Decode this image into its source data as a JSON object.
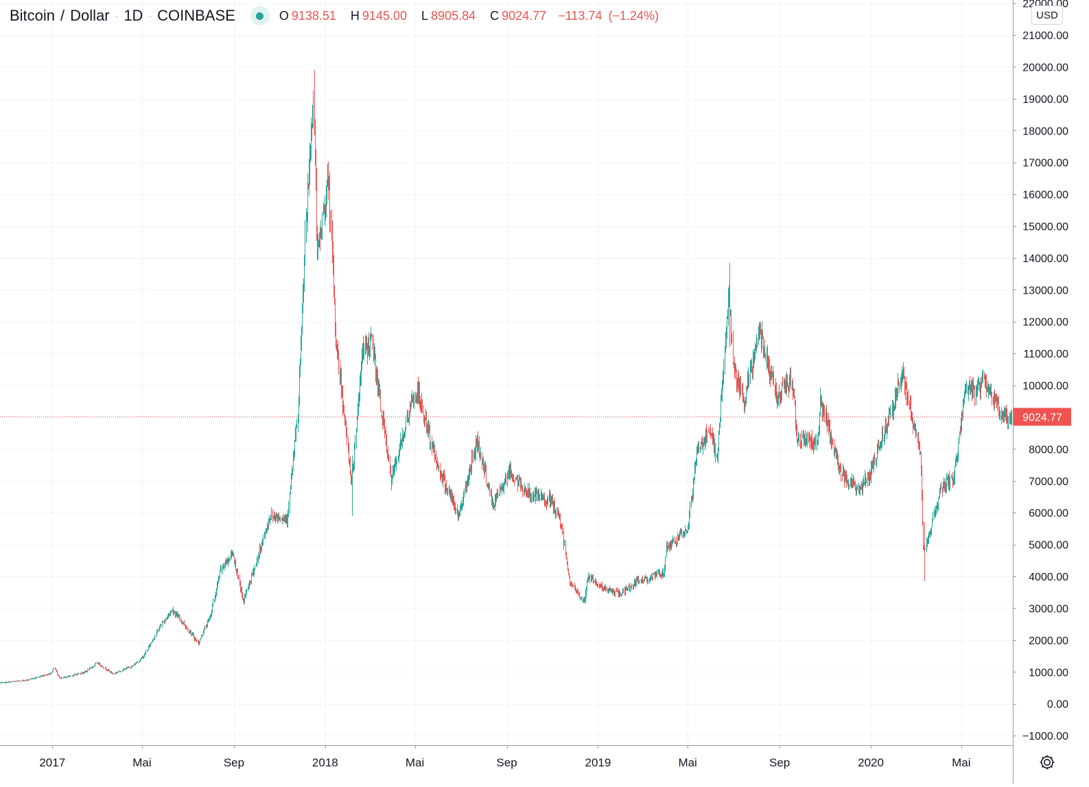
{
  "legend": {
    "symbol": "Bitcoin",
    "quote": "Dollar",
    "separator": "/",
    "interval": "1D",
    "exchange": "COINBASE",
    "status_color": "#26a69a",
    "ohlc": {
      "o_label": "O",
      "o_value": "9138.51",
      "h_label": "H",
      "h_value": "9145.00",
      "l_label": "L",
      "l_value": "8905.84",
      "c_label": "C",
      "c_value": "9024.77",
      "change": "−113.74",
      "change_pct": "(−1.24%)"
    }
  },
  "currency_button": "USD",
  "settings_icon": "gear-icon",
  "chart_data": {
    "type": "candlestick",
    "symbol": "Bitcoin / Dollar",
    "interval": "1D",
    "exchange": "COINBASE",
    "currency": "USD",
    "y_range": [
      -1300,
      22100
    ],
    "y_ticks": [
      -1000,
      0,
      1000,
      2000,
      3000,
      4000,
      5000,
      6000,
      7000,
      8000,
      9000,
      10000,
      11000,
      12000,
      13000,
      14000,
      15000,
      16000,
      17000,
      18000,
      19000,
      20000,
      21000,
      22000
    ],
    "y_tick_labels": [
      "−1000.00",
      "0.00",
      "1000.00",
      "2000.00",
      "3000.00",
      "4000.00",
      "5000.00",
      "6000.00",
      "7000.00",
      "8000.00",
      "9000.00",
      "10000.00",
      "11000.00",
      "12000.00",
      "13000.00",
      "14000.00",
      "15000.00",
      "16000.00",
      "17000.00",
      "18000.00",
      "19000.00",
      "20000.00",
      "21000.00",
      "22000.00"
    ],
    "x_range": [
      "2016-10-23",
      "2020-07-09"
    ],
    "x_ticks": [
      {
        "date": "2017-01-01",
        "label": "2017"
      },
      {
        "date": "2017-05-01",
        "label": "Mai"
      },
      {
        "date": "2017-09-01",
        "label": "Sep"
      },
      {
        "date": "2018-01-01",
        "label": "2018"
      },
      {
        "date": "2018-05-01",
        "label": "Mai"
      },
      {
        "date": "2018-09-01",
        "label": "Sep"
      },
      {
        "date": "2019-01-01",
        "label": "2019"
      },
      {
        "date": "2019-05-01",
        "label": "Mai"
      },
      {
        "date": "2019-09-01",
        "label": "Sep"
      },
      {
        "date": "2020-01-01",
        "label": "2020"
      },
      {
        "date": "2020-05-01",
        "label": "Mai"
      }
    ],
    "last_price": 9024.77,
    "last_price_label": "9024.77",
    "up_color": "#26a69a",
    "down_color": "#ef5350",
    "grid": true,
    "price_path": [
      [
        "2016-10-23",
        650
      ],
      [
        "2016-12-01",
        750
      ],
      [
        "2016-12-31",
        960
      ],
      [
        "2017-01-04",
        1130
      ],
      [
        "2017-01-12",
        790
      ],
      [
        "2017-02-15",
        1000
      ],
      [
        "2017-03-03",
        1280
      ],
      [
        "2017-03-24",
        940
      ],
      [
        "2017-04-20",
        1200
      ],
      [
        "2017-05-04",
        1500
      ],
      [
        "2017-05-25",
        2400
      ],
      [
        "2017-06-11",
        2950
      ],
      [
        "2017-06-27",
        2500
      ],
      [
        "2017-07-16",
        1900
      ],
      [
        "2017-08-01",
        2750
      ],
      [
        "2017-08-15",
        4200
      ],
      [
        "2017-08-31",
        4750
      ],
      [
        "2017-09-14",
        3200
      ],
      [
        "2017-10-01",
        4400
      ],
      [
        "2017-10-20",
        5900
      ],
      [
        "2017-11-12",
        5850
      ],
      [
        "2017-11-26",
        9000
      ],
      [
        "2017-12-07",
        15000
      ],
      [
        "2017-12-17",
        19200
      ],
      [
        "2017-12-22",
        14000
      ],
      [
        "2018-01-06",
        16500
      ],
      [
        "2018-01-16",
        11500
      ],
      [
        "2018-02-06",
        6900
      ],
      [
        "2018-02-20",
        11000
      ],
      [
        "2018-03-05",
        11400
      ],
      [
        "2018-03-31",
        7000
      ],
      [
        "2018-04-24",
        9200
      ],
      [
        "2018-05-05",
        9800
      ],
      [
        "2018-06-01",
        7500
      ],
      [
        "2018-06-29",
        5900
      ],
      [
        "2018-07-24",
        8300
      ],
      [
        "2018-08-14",
        6200
      ],
      [
        "2018-09-04",
        7300
      ],
      [
        "2018-09-30",
        6600
      ],
      [
        "2018-10-31",
        6350
      ],
      [
        "2018-11-14",
        5600
      ],
      [
        "2018-11-25",
        3800
      ],
      [
        "2018-12-14",
        3200
      ],
      [
        "2018-12-20",
        4000
      ],
      [
        "2019-01-10",
        3600
      ],
      [
        "2019-01-31",
        3450
      ],
      [
        "2019-02-24",
        3850
      ],
      [
        "2019-03-31",
        4100
      ],
      [
        "2019-04-03",
        4900
      ],
      [
        "2019-05-01",
        5400
      ],
      [
        "2019-05-15",
        8000
      ],
      [
        "2019-05-31",
        8500
      ],
      [
        "2019-06-10",
        7800
      ],
      [
        "2019-06-26",
        12900
      ],
      [
        "2019-07-02",
        10500
      ],
      [
        "2019-07-16",
        9400
      ],
      [
        "2019-08-06",
        11800
      ],
      [
        "2019-08-29",
        9600
      ],
      [
        "2019-09-18",
        10200
      ],
      [
        "2019-09-25",
        8400
      ],
      [
        "2019-10-22",
        8200
      ],
      [
        "2019-10-26",
        9500
      ],
      [
        "2019-11-22",
        7300
      ],
      [
        "2019-12-17",
        6700
      ],
      [
        "2019-12-31",
        7200
      ],
      [
        "2020-01-31",
        9400
      ],
      [
        "2020-02-13",
        10300
      ],
      [
        "2020-02-29",
        8600
      ],
      [
        "2020-03-08",
        8000
      ],
      [
        "2020-03-12",
        4900
      ],
      [
        "2020-03-16",
        5000
      ],
      [
        "2020-04-05",
        6800
      ],
      [
        "2020-04-22",
        7100
      ],
      [
        "2020-05-07",
        9900
      ],
      [
        "2020-05-19",
        9750
      ],
      [
        "2020-06-01",
        10200
      ],
      [
        "2020-06-27",
        9000
      ],
      [
        "2020-07-07",
        9024.77
      ]
    ],
    "extremes": [
      {
        "date": "2017-12-17",
        "high": 19900,
        "low": 18900
      },
      {
        "date": "2018-02-06",
        "high": 7800,
        "low": 5900
      },
      {
        "date": "2018-12-15",
        "high": 3600,
        "low": 3150
      },
      {
        "date": "2019-06-26",
        "high": 13850,
        "low": 11200
      },
      {
        "date": "2020-03-13",
        "high": 5700,
        "low": 3850
      }
    ]
  }
}
